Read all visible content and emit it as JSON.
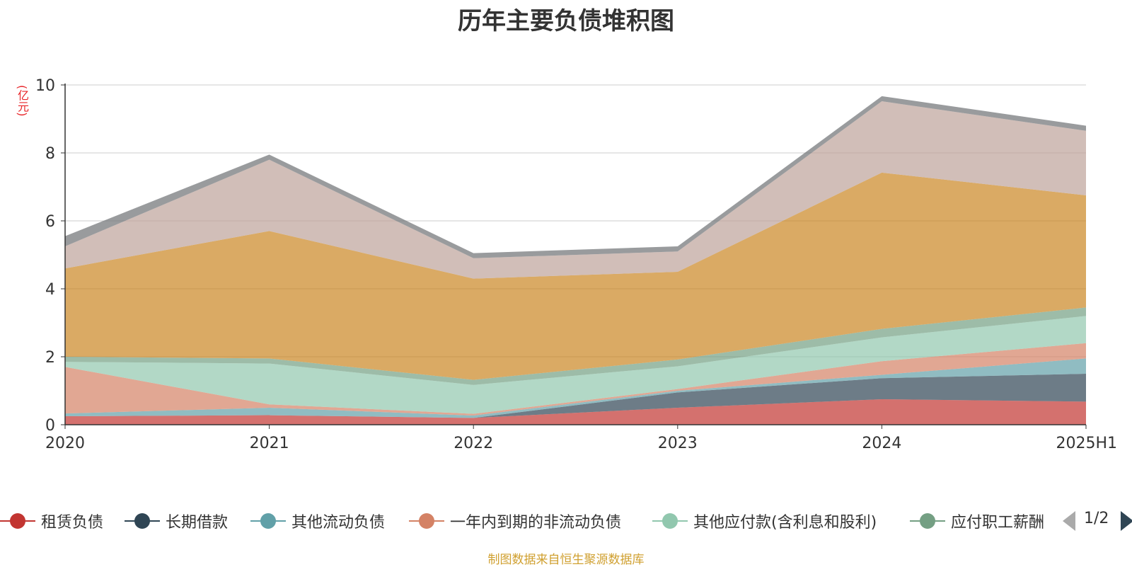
{
  "chart_data": {
    "type": "area",
    "title": "历年主要负债堆积图",
    "ylabel": "(亿元)",
    "xlabel": "",
    "categories": [
      "2020",
      "2021",
      "2022",
      "2023",
      "2024",
      "2025H1"
    ],
    "ylim": [
      0,
      10
    ],
    "yticks": [
      "0",
      "2",
      "4",
      "6",
      "8",
      "10"
    ],
    "stacked": true,
    "grid": true,
    "legend_position": "bottom",
    "series": [
      {
        "name": "租赁负债",
        "color": "#c23531",
        "values": [
          0.25,
          0.28,
          0.2,
          0.5,
          0.75,
          0.68
        ]
      },
      {
        "name": "长期借款",
        "color": "#2f4554",
        "values": [
          0.0,
          0.0,
          0.0,
          0.45,
          0.62,
          0.82
        ]
      },
      {
        "name": "其他流动负债",
        "color": "#61a0a8",
        "values": [
          0.08,
          0.22,
          0.07,
          0.05,
          0.1,
          0.45
        ]
      },
      {
        "name": "一年内到期的非流动负债",
        "color": "#d48265",
        "values": [
          1.37,
          0.1,
          0.05,
          0.05,
          0.4,
          0.45
        ]
      },
      {
        "name": "其他应付款(含利息和股利)",
        "color": "#91c7ae",
        "values": [
          0.15,
          1.2,
          0.85,
          0.67,
          0.7,
          0.8
        ]
      },
      {
        "name": "应付职工薪酬",
        "color": "#749f83",
        "values": [
          0.15,
          0.15,
          0.15,
          0.2,
          0.25,
          0.25
        ]
      },
      {
        "name": "",
        "color": "#ca8622",
        "values": [
          2.6,
          3.75,
          2.98,
          2.58,
          4.6,
          3.3
        ]
      },
      {
        "name": "",
        "color": "#bda29a",
        "values": [
          0.65,
          2.1,
          0.6,
          0.6,
          2.1,
          1.9
        ]
      },
      {
        "name": "",
        "color": "#6e7074",
        "values": [
          0.3,
          0.15,
          0.15,
          0.15,
          0.15,
          0.15
        ]
      }
    ]
  },
  "legend": {
    "items": [
      {
        "name": "租赁负债",
        "color": "#c23531"
      },
      {
        "name": "长期借款",
        "color": "#2f4554"
      },
      {
        "name": "其他流动负债",
        "color": "#61a0a8"
      },
      {
        "name": "一年内到期的非流动负债",
        "color": "#d48265"
      },
      {
        "name": "其他应付款(含利息和股利)",
        "color": "#91c7ae"
      },
      {
        "name": "应付职工薪酬",
        "color": "#749f83"
      }
    ],
    "page_indicator": "1/2"
  },
  "footer": {
    "source": "制图数据来自恒生聚源数据库"
  }
}
